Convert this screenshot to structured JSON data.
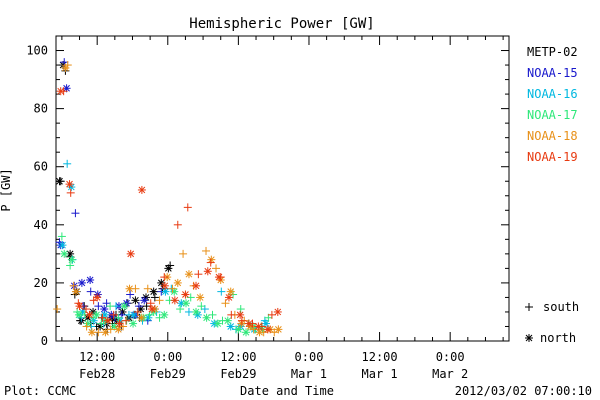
{
  "chart_data": {
    "type": "scatter",
    "title": "Hemispheric Power [GW]",
    "xlabel": "Date and Time",
    "ylabel": "P [GW]",
    "ylim": [
      0,
      105
    ],
    "xlim_hours": [
      5,
      82
    ],
    "x_unit": "hours after 2012-02-28 00:00 UT",
    "x_ticks": [
      {
        "hour": 12,
        "time": "12:00",
        "date": "Feb28"
      },
      {
        "hour": 24,
        "time": "0:00",
        "date": "Feb29"
      },
      {
        "hour": 36,
        "time": "12:00",
        "date": "Feb29"
      },
      {
        "hour": 48,
        "time": "0:00",
        "date": "Mar 1"
      },
      {
        "hour": 60,
        "time": "12:00",
        "date": "Mar 1"
      },
      {
        "hour": 72,
        "time": "0:00",
        "date": "Mar 2"
      }
    ],
    "y_ticks": [
      0,
      20,
      40,
      60,
      80,
      100
    ],
    "grid": false,
    "legend_position": "right",
    "markers": [
      {
        "label": "south",
        "symbol": "+"
      },
      {
        "label": "north",
        "symbol": "*"
      }
    ],
    "series": [
      {
        "name": "METP-02",
        "color": "#000000",
        "south": [
          [
            5.8,
            55
          ],
          [
            6.6,
            93
          ],
          [
            7.3,
            29
          ],
          [
            8.2,
            16
          ],
          [
            9.1,
            7
          ],
          [
            9.8,
            12
          ],
          [
            10.9,
            6
          ],
          [
            11.9,
            5
          ],
          [
            12.8,
            8
          ],
          [
            13.7,
            4
          ],
          [
            14.6,
            6
          ],
          [
            15.2,
            9
          ],
          [
            16.1,
            5
          ],
          [
            17.2,
            13
          ],
          [
            18.3,
            9
          ],
          [
            19.2,
            8
          ],
          [
            20.4,
            12
          ],
          [
            21.8,
            15
          ],
          [
            23.1,
            18
          ],
          [
            24.4,
            26
          ]
        ],
        "north": [
          [
            5.6,
            55
          ],
          [
            6.2,
            95
          ],
          [
            7.4,
            30
          ],
          [
            8.5,
            17
          ],
          [
            9.3,
            7
          ],
          [
            10.4,
            8
          ],
          [
            11.3,
            10
          ],
          [
            12.5,
            5
          ],
          [
            13.6,
            6
          ],
          [
            14.5,
            8
          ],
          [
            15.3,
            7
          ],
          [
            16.3,
            10
          ],
          [
            17.4,
            8
          ],
          [
            18.5,
            14
          ],
          [
            19.4,
            11
          ],
          [
            20.3,
            15
          ],
          [
            21.6,
            17
          ],
          [
            22.9,
            20
          ],
          [
            24.1,
            25
          ]
        ]
      },
      {
        "name": "NOAA-15",
        "color": "#1818cc",
        "south": [
          [
            5.6,
            34
          ],
          [
            6.4,
            96
          ],
          [
            8.3,
            44
          ],
          [
            9.6,
            12
          ],
          [
            10.9,
            17
          ],
          [
            12.2,
            12
          ],
          [
            13.6,
            13
          ],
          [
            15.0,
            8
          ],
          [
            16.2,
            9
          ],
          [
            17.6,
            16
          ],
          [
            19.1,
            12
          ],
          [
            20.6,
            7
          ],
          [
            21.8,
            11
          ],
          [
            22.9,
            17
          ]
        ],
        "north": [
          [
            5.8,
            33
          ],
          [
            6.8,
            87
          ],
          [
            8.1,
            19
          ],
          [
            9.4,
            20
          ],
          [
            10.8,
            21
          ],
          [
            12.1,
            16
          ],
          [
            13.2,
            11
          ],
          [
            14.4,
            9
          ],
          [
            15.7,
            12
          ],
          [
            17.0,
            13
          ],
          [
            18.5,
            9
          ],
          [
            20.0,
            14
          ]
        ]
      },
      {
        "name": "NOAA-16",
        "color": "#00b8e0",
        "south": [
          [
            6.9,
            61
          ],
          [
            7.8,
            28
          ],
          [
            9.3,
            8
          ],
          [
            11.0,
            5
          ],
          [
            13.1,
            6
          ],
          [
            15.2,
            12
          ],
          [
            17.4,
            9
          ],
          [
            19.7,
            7
          ],
          [
            22.1,
            10
          ],
          [
            24.6,
            18
          ],
          [
            27.6,
            10
          ],
          [
            30.3,
            11
          ],
          [
            33.1,
            17
          ],
          [
            35.6,
            4
          ],
          [
            38.2,
            5
          ],
          [
            40.5,
            7
          ]
        ],
        "north": [
          [
            6.1,
            33
          ],
          [
            7.6,
            53
          ],
          [
            9.5,
            10
          ],
          [
            11.4,
            7
          ],
          [
            13.3,
            9
          ],
          [
            15.9,
            7
          ],
          [
            18.2,
            9
          ],
          [
            20.7,
            8
          ],
          [
            23.6,
            17
          ],
          [
            26.3,
            13
          ],
          [
            29.1,
            9
          ],
          [
            31.9,
            6
          ],
          [
            34.7,
            5
          ],
          [
            36.4,
            5
          ],
          [
            38.7,
            4
          ],
          [
            40.7,
            6
          ]
        ]
      },
      {
        "name": "NOAA-17",
        "color": "#2ee87a",
        "south": [
          [
            6.0,
            36
          ],
          [
            7.4,
            26
          ],
          [
            8.6,
            10
          ],
          [
            9.9,
            9
          ],
          [
            11.3,
            8
          ],
          [
            12.7,
            6
          ],
          [
            14.2,
            12
          ],
          [
            15.6,
            8
          ],
          [
            17.0,
            7
          ],
          [
            18.9,
            10
          ],
          [
            20.9,
            9
          ],
          [
            22.6,
            8
          ],
          [
            24.3,
            14
          ],
          [
            26.1,
            11
          ],
          [
            27.9,
            15
          ],
          [
            29.7,
            12
          ],
          [
            31.6,
            9
          ],
          [
            33.3,
            7
          ],
          [
            35.1,
            16
          ],
          [
            36.4,
            11
          ],
          [
            37.7,
            6
          ],
          [
            38.9,
            4
          ],
          [
            39.9,
            5
          ],
          [
            41.1,
            8
          ]
        ],
        "north": [
          [
            6.4,
            30
          ],
          [
            7.7,
            28
          ],
          [
            8.9,
            9
          ],
          [
            10.4,
            6
          ],
          [
            11.9,
            9
          ],
          [
            13.4,
            7
          ],
          [
            14.9,
            5
          ],
          [
            16.6,
            12
          ],
          [
            18.1,
            6
          ],
          [
            19.8,
            8
          ],
          [
            21.6,
            10
          ],
          [
            23.4,
            9
          ],
          [
            25.1,
            17
          ],
          [
            27.1,
            13
          ],
          [
            28.8,
            10
          ],
          [
            30.6,
            8
          ],
          [
            32.5,
            6
          ],
          [
            34.2,
            7
          ],
          [
            36.0,
            4
          ],
          [
            37.3,
            3
          ],
          [
            38.5,
            5
          ],
          [
            40.1,
            4
          ]
        ]
      },
      {
        "name": "NOAA-18",
        "color": "#e89018",
        "south": [
          [
            5.2,
            11
          ],
          [
            7.0,
            95
          ],
          [
            8.0,
            19
          ],
          [
            10.2,
            5
          ],
          [
            12.2,
            3
          ],
          [
            14.3,
            4
          ],
          [
            16.4,
            5
          ],
          [
            18.5,
            18
          ],
          [
            20.6,
            18
          ],
          [
            22.6,
            14
          ],
          [
            24.8,
            18
          ],
          [
            26.6,
            30
          ],
          [
            28.4,
            19
          ],
          [
            30.5,
            31
          ],
          [
            32.2,
            25
          ],
          [
            33.8,
            13
          ],
          [
            35.4,
            9
          ],
          [
            37.0,
            7
          ],
          [
            38.6,
            4
          ],
          [
            40.3,
            3
          ],
          [
            42.1,
            3
          ]
        ],
        "north": [
          [
            6.6,
            94
          ],
          [
            8.4,
            17
          ],
          [
            11.1,
            3
          ],
          [
            13.4,
            3
          ],
          [
            15.6,
            4
          ],
          [
            17.5,
            18
          ],
          [
            19.5,
            8
          ],
          [
            21.8,
            11
          ],
          [
            23.9,
            22
          ],
          [
            25.7,
            20
          ],
          [
            27.6,
            23
          ],
          [
            29.5,
            15
          ],
          [
            31.4,
            28
          ],
          [
            33.0,
            21
          ],
          [
            34.7,
            17
          ],
          [
            36.5,
            6
          ],
          [
            38.0,
            5
          ],
          [
            39.6,
            3
          ],
          [
            41.4,
            4
          ],
          [
            42.8,
            4
          ]
        ]
      },
      {
        "name": "NOAA-19",
        "color": "#e83a10",
        "south": [
          [
            6.3,
            86
          ],
          [
            7.5,
            51
          ],
          [
            8.8,
            13
          ],
          [
            10.1,
            11
          ],
          [
            11.4,
            14
          ],
          [
            12.9,
            8
          ],
          [
            14.8,
            9
          ],
          [
            16.9,
            7
          ],
          [
            18.9,
            10
          ],
          [
            21.1,
            13
          ],
          [
            23.4,
            22
          ],
          [
            25.7,
            40
          ],
          [
            27.4,
            46
          ],
          [
            29.2,
            23
          ],
          [
            31.3,
            27
          ],
          [
            33.0,
            22
          ],
          [
            34.8,
            9
          ],
          [
            36.6,
            7
          ],
          [
            38.4,
            6
          ],
          [
            40.0,
            5
          ],
          [
            41.7,
            9
          ]
        ],
        "north": [
          [
            5.8,
            86
          ],
          [
            7.3,
            54
          ],
          [
            9.0,
            12
          ],
          [
            10.7,
            9
          ],
          [
            12.0,
            15
          ],
          [
            13.8,
            7
          ],
          [
            15.8,
            6
          ],
          [
            17.7,
            30
          ],
          [
            19.6,
            52
          ],
          [
            21.3,
            11
          ],
          [
            23.5,
            19
          ],
          [
            25.2,
            14
          ],
          [
            27.0,
            16
          ],
          [
            28.8,
            19
          ],
          [
            30.8,
            24
          ],
          [
            32.7,
            22
          ],
          [
            34.4,
            15
          ],
          [
            36.3,
            9
          ],
          [
            37.8,
            6
          ],
          [
            39.4,
            5
          ],
          [
            41.0,
            4
          ],
          [
            42.7,
            10
          ]
        ]
      }
    ]
  },
  "footer": {
    "left": "Plot: CCMC",
    "right": "2012/03/02 07:00:10"
  }
}
